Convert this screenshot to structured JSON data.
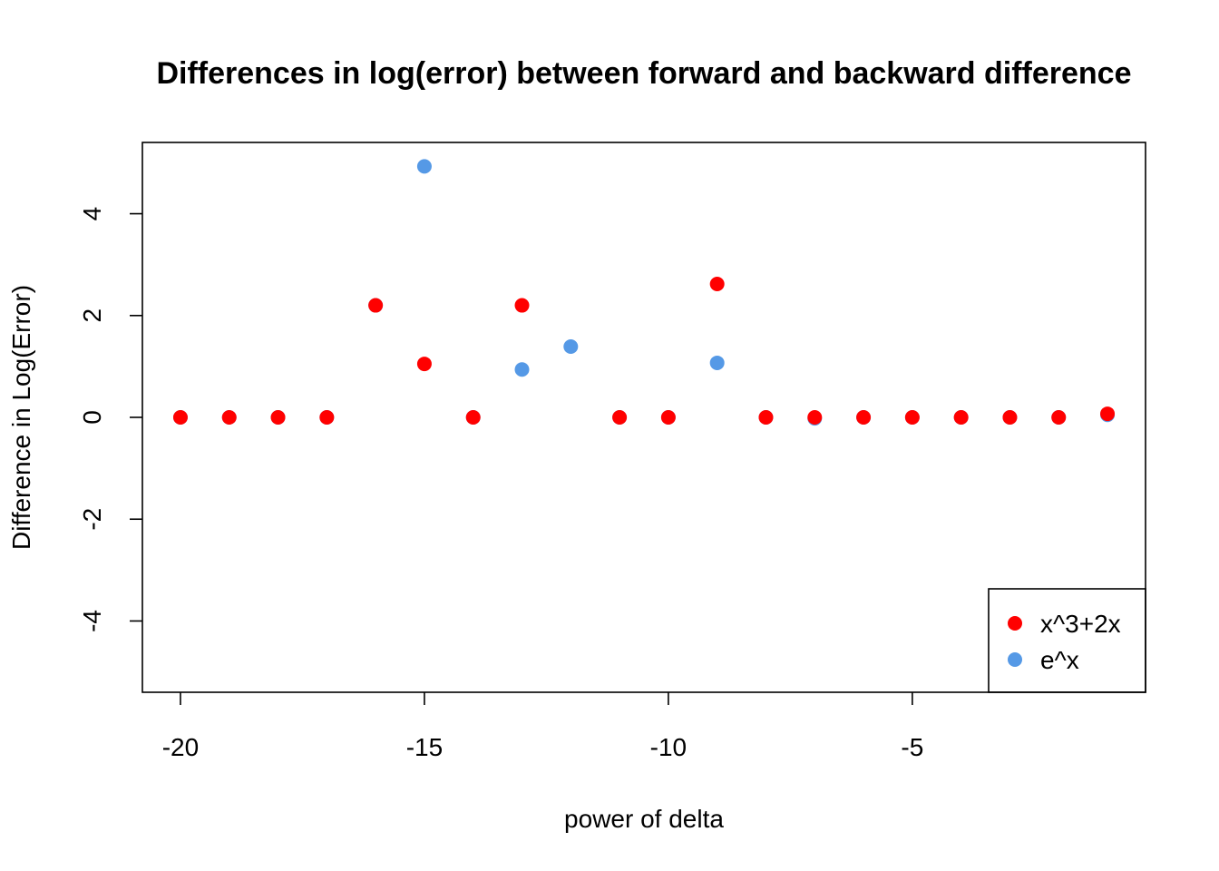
{
  "chart_data": {
    "type": "scatter",
    "title": "Differences in log(error) between forward and backward difference",
    "xlabel": "power of delta",
    "ylabel": "Difference in Log(Error)",
    "xlim": [
      -20.78,
      -0.22
    ],
    "ylim": [
      -5.4,
      5.4
    ],
    "x_ticks": [
      -20,
      -15,
      -10,
      -5
    ],
    "x_tick_labels": [
      "-20",
      "-15",
      "-10",
      "-5"
    ],
    "y_ticks": [
      -4,
      -2,
      0,
      2,
      4
    ],
    "y_tick_labels": [
      "-4",
      "-2",
      "0",
      "2",
      "4"
    ],
    "grid": false,
    "legend_position": "bottom-right",
    "series": [
      {
        "name": "e^x",
        "color": "#5599E6",
        "x": [
          -20,
          -19,
          -18,
          -17,
          -16,
          -15,
          -14,
          -13,
          -12,
          -11,
          -10,
          -9,
          -8,
          -7,
          -6,
          -5,
          -4,
          -3,
          -2,
          -1
        ],
        "y": [
          0,
          0,
          0,
          0,
          2.2,
          4.93,
          0,
          0.94,
          1.39,
          0,
          0,
          1.07,
          0,
          -0.02,
          0,
          0,
          0,
          0,
          0,
          0.05
        ]
      },
      {
        "name": "x^3+2x",
        "color": "#FF0000",
        "x": [
          -20,
          -19,
          -18,
          -17,
          -16,
          -15,
          -14,
          -13,
          -12,
          -11,
          -10,
          -9,
          -8,
          -7,
          -6,
          -5,
          -4,
          -3,
          -2,
          -1
        ],
        "y": [
          0,
          0,
          0,
          0,
          2.2,
          1.05,
          0,
          2.2,
          null,
          0,
          0,
          2.62,
          0,
          0,
          0,
          0,
          0,
          0,
          0,
          0.07
        ]
      }
    ],
    "legend": [
      {
        "label": "x^3+2x",
        "color": "#FF0000"
      },
      {
        "label": "e^x",
        "color": "#5599E6"
      }
    ]
  }
}
